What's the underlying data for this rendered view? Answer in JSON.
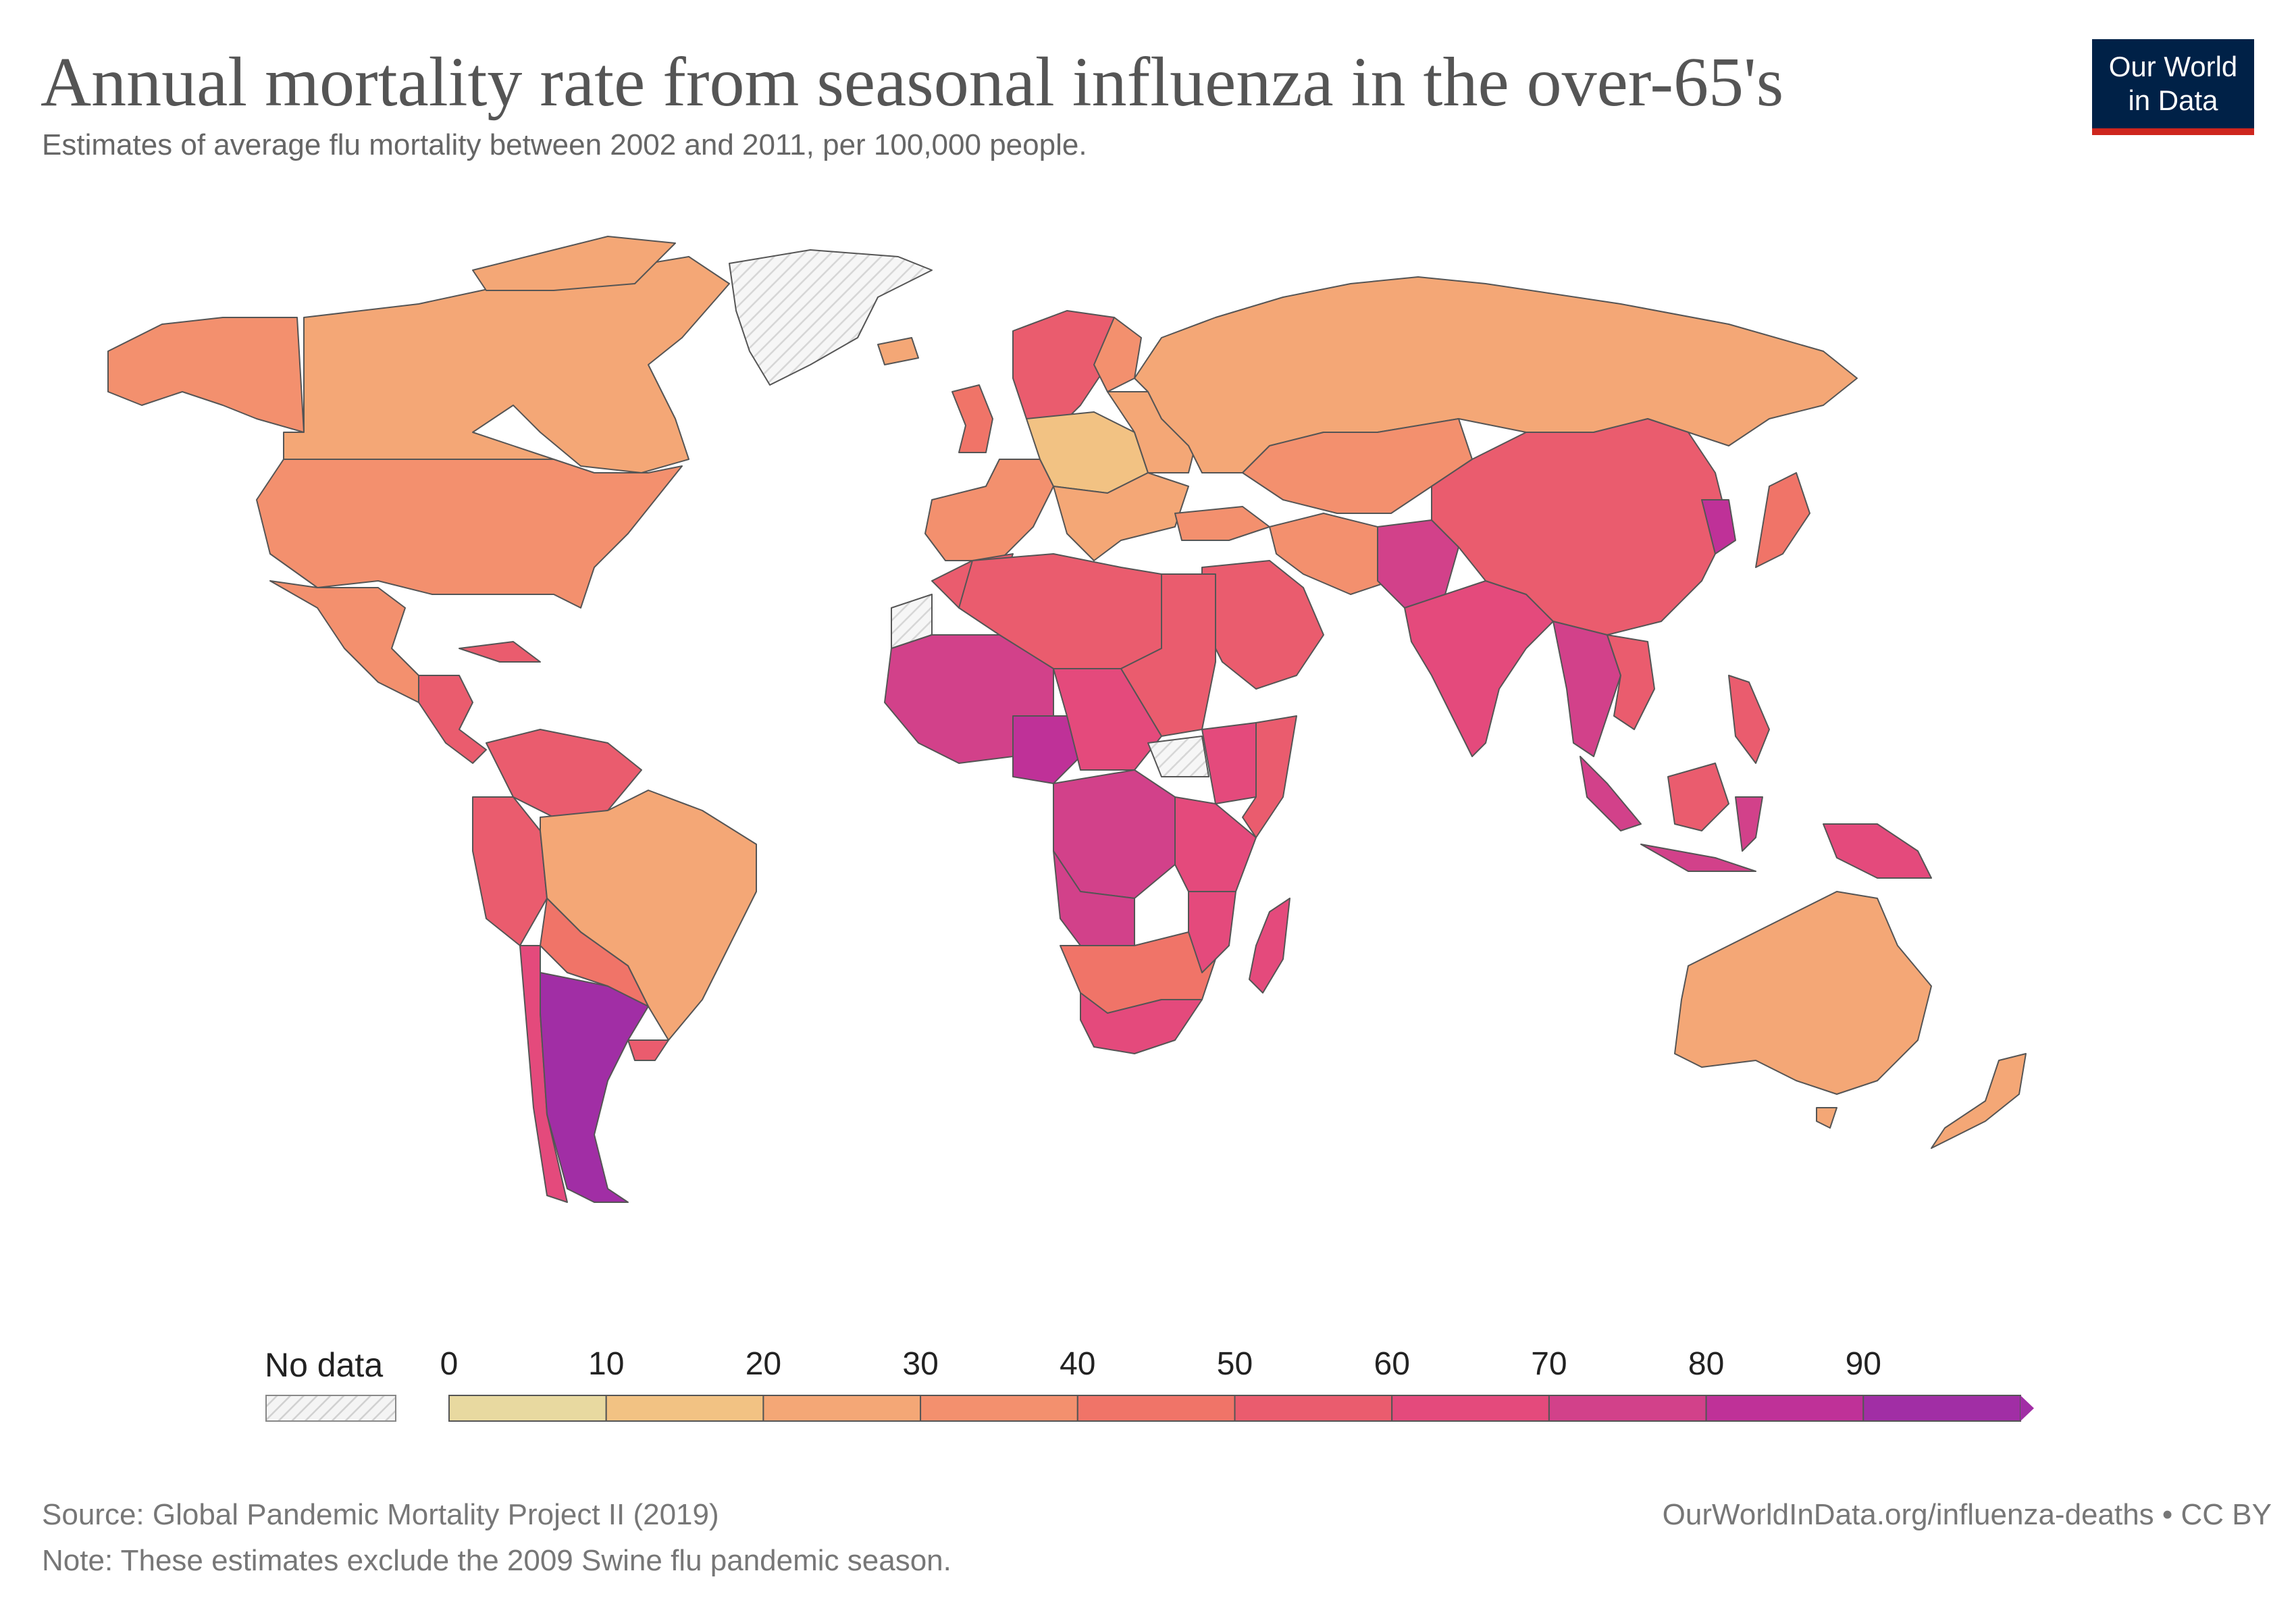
{
  "title": "Annual mortality rate from seasonal influenza in the over-65's",
  "subtitle": "Estimates of average flu mortality between 2002 and 2011, per 100,000 people.",
  "logo": {
    "line1": "Our World",
    "line2": "in Data"
  },
  "legend": {
    "no_data_label": "No data",
    "ticks": [
      "0",
      "10",
      "20",
      "30",
      "40",
      "50",
      "60",
      "70",
      "80",
      "90"
    ],
    "bins": [
      {
        "from": 0,
        "to": 10,
        "color": "#e8d9a0"
      },
      {
        "from": 10,
        "to": 20,
        "color": "#f2c283"
      },
      {
        "from": 20,
        "to": 30,
        "color": "#f4a776"
      },
      {
        "from": 30,
        "to": 40,
        "color": "#f3906e"
      },
      {
        "from": 40,
        "to": 50,
        "color": "#f07468"
      },
      {
        "from": 50,
        "to": 60,
        "color": "#ea5c6e"
      },
      {
        "from": 60,
        "to": 70,
        "color": "#e44a7c"
      },
      {
        "from": 70,
        "to": 80,
        "color": "#d2418a"
      },
      {
        "from": 80,
        "to": 90,
        "color": "#bf3198"
      },
      {
        "from": 90,
        "to": 100,
        "color": "#a12ea5"
      }
    ],
    "no_data_color": "#eeeeee"
  },
  "footer": {
    "source": "Source: Global Pandemic Mortality Project II (2019)",
    "note": "Note: These estimates exclude the 2009 Swine flu pandemic season.",
    "credit": "OurWorldInData.org/influenza-deaths • CC BY"
  }
}
